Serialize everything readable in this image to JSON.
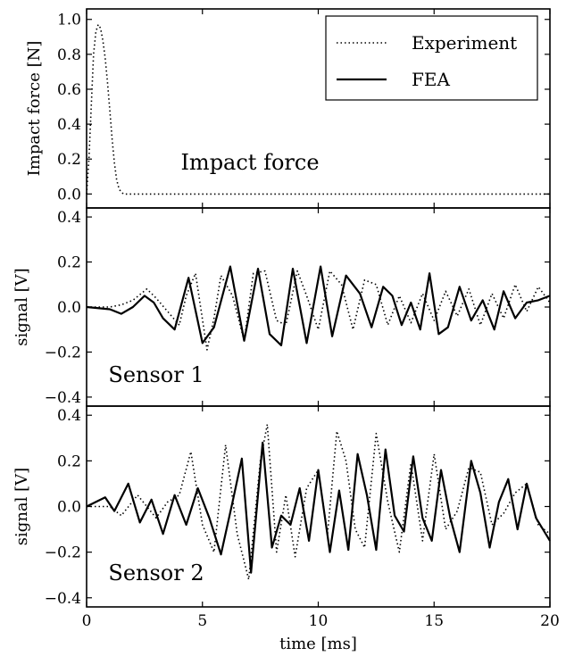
{
  "chart_data": [
    {
      "type": "line",
      "ylabel": "Impact force [N]",
      "annotation": "Impact force",
      "xlim": [
        0,
        20
      ],
      "ylim": [
        -0.08,
        1.06
      ],
      "yticks": [
        0.0,
        0.2,
        0.4,
        0.6,
        0.8,
        1.0
      ],
      "ytick_labels": [
        "0.0",
        "0.2",
        "0.4",
        "0.6",
        "0.8",
        "1.0"
      ],
      "legend": {
        "position": "top-right",
        "entries": [
          {
            "label": "Experiment",
            "style": "dotted"
          },
          {
            "label": "FEA",
            "style": "solid"
          }
        ]
      },
      "series": [
        {
          "name": "Experiment",
          "style": "dotted",
          "x": [
            0,
            0.1,
            0.2,
            0.3,
            0.4,
            0.5,
            0.6,
            0.7,
            0.8,
            0.9,
            1.0,
            1.1,
            1.2,
            1.3,
            1.4,
            1.5,
            1.6,
            1.7,
            1.8,
            2.0,
            3,
            5,
            10,
            15,
            20
          ],
          "y": [
            0.0,
            0.2,
            0.5,
            0.8,
            0.93,
            0.97,
            0.95,
            0.88,
            0.78,
            0.64,
            0.48,
            0.32,
            0.18,
            0.08,
            0.03,
            0.01,
            0.0,
            0.0,
            0.0,
            0.0,
            0.0,
            0.0,
            0.0,
            0.0,
            0.0
          ]
        }
      ]
    },
    {
      "type": "line",
      "ylabel": "signal [V]",
      "annotation": "Sensor 1",
      "xlim": [
        0,
        20
      ],
      "ylim": [
        -0.44,
        0.44
      ],
      "yticks": [
        -0.4,
        -0.2,
        0.0,
        0.2,
        0.4
      ],
      "ytick_labels": [
        "−0.4",
        "−0.2",
        "0.0",
        "0.2",
        "0.4"
      ],
      "series": [
        {
          "name": "Experiment",
          "style": "dotted",
          "x": [
            0,
            1,
            1.5,
            2,
            2.6,
            3.0,
            3.5,
            4.0,
            4.3,
            4.7,
            5.2,
            5.5,
            5.8,
            6.3,
            6.8,
            7.2,
            7.7,
            8.2,
            8.6,
            9.1,
            9.5,
            10.0,
            10.5,
            11.0,
            11.5,
            12.0,
            12.5,
            13.0,
            13.5,
            14.0,
            14.5,
            15.0,
            15.5,
            16.0,
            16.5,
            17.0,
            17.5,
            18.0,
            18.5,
            19.0,
            19.5,
            20
          ],
          "y": [
            0.0,
            0.0,
            0.01,
            0.03,
            0.08,
            0.04,
            -0.02,
            -0.08,
            0.05,
            0.15,
            -0.19,
            -0.05,
            0.14,
            0.05,
            -0.15,
            0.15,
            0.16,
            -0.06,
            -0.08,
            0.16,
            0.05,
            -0.1,
            0.16,
            0.1,
            -0.1,
            0.12,
            0.1,
            -0.08,
            0.05,
            -0.07,
            0.06,
            -0.06,
            0.07,
            -0.04,
            0.08,
            -0.08,
            0.06,
            -0.05,
            0.1,
            -0.02,
            0.09,
            0.02
          ]
        },
        {
          "name": "FEA",
          "style": "solid",
          "x": [
            0,
            1,
            1.5,
            2.0,
            2.5,
            2.9,
            3.3,
            3.8,
            4.4,
            5.0,
            5.5,
            6.2,
            6.8,
            7.4,
            7.9,
            8.4,
            8.9,
            9.5,
            10.1,
            10.6,
            11.2,
            11.8,
            12.3,
            12.8,
            13.2,
            13.6,
            14.0,
            14.4,
            14.8,
            15.2,
            15.6,
            16.1,
            16.6,
            17.1,
            17.6,
            18.0,
            18.5,
            19.0,
            19.5,
            20
          ],
          "y": [
            0.0,
            -0.01,
            -0.03,
            0.0,
            0.05,
            0.02,
            -0.05,
            -0.1,
            0.13,
            -0.16,
            -0.09,
            0.18,
            -0.15,
            0.17,
            -0.12,
            -0.17,
            0.17,
            -0.16,
            0.18,
            -0.13,
            0.14,
            0.06,
            -0.09,
            0.09,
            0.05,
            -0.08,
            0.02,
            -0.1,
            0.15,
            -0.12,
            -0.09,
            0.09,
            -0.06,
            0.03,
            -0.1,
            0.07,
            -0.05,
            0.02,
            0.03,
            0.05
          ]
        }
      ]
    },
    {
      "type": "line",
      "ylabel": "signal [V]",
      "annotation": "Sensor 2",
      "xlabel": "time [ms]",
      "xlim": [
        0,
        20
      ],
      "xticks": [
        0,
        5,
        10,
        15,
        20
      ],
      "xtick_labels": [
        "0",
        "5",
        "10",
        "15",
        "20"
      ],
      "ylim": [
        -0.44,
        0.44
      ],
      "yticks": [
        -0.4,
        -0.2,
        0.0,
        0.2,
        0.4
      ],
      "ytick_labels": [
        "−0.4",
        "−0.2",
        "0.0",
        "0.2",
        "0.4"
      ],
      "series": [
        {
          "name": "Experiment",
          "style": "dotted",
          "x": [
            0,
            1,
            1.5,
            2.2,
            3.0,
            3.5,
            4.0,
            4.5,
            5.0,
            5.5,
            6.0,
            6.5,
            7.0,
            7.5,
            7.8,
            8.2,
            8.6,
            9.0,
            9.5,
            10.0,
            10.4,
            10.8,
            11.2,
            11.6,
            12.0,
            12.5,
            13.0,
            13.5,
            14.0,
            14.5,
            15.0,
            15.5,
            16.0,
            16.5,
            17.0,
            17.5,
            18.0,
            18.5,
            19.0,
            19.5,
            20
          ],
          "y": [
            0.0,
            0.0,
            -0.04,
            0.05,
            -0.05,
            0.02,
            0.05,
            0.24,
            -0.08,
            -0.2,
            0.27,
            -0.12,
            -0.32,
            0.2,
            0.36,
            -0.2,
            0.05,
            -0.22,
            0.08,
            0.16,
            -0.12,
            0.33,
            0.2,
            -0.1,
            -0.18,
            0.32,
            0.02,
            -0.2,
            0.19,
            -0.15,
            0.23,
            -0.1,
            -0.02,
            0.17,
            0.15,
            -0.08,
            -0.03,
            0.06,
            0.1,
            -0.08,
            -0.12
          ]
        },
        {
          "name": "FEA",
          "style": "solid",
          "x": [
            0,
            0.8,
            1.2,
            1.8,
            2.3,
            2.8,
            3.3,
            3.8,
            4.3,
            4.8,
            5.3,
            5.8,
            6.3,
            6.7,
            7.1,
            7.6,
            8.0,
            8.4,
            8.8,
            9.2,
            9.6,
            10.0,
            10.5,
            10.9,
            11.3,
            11.7,
            12.1,
            12.5,
            12.9,
            13.3,
            13.7,
            14.1,
            14.5,
            14.9,
            15.3,
            15.7,
            16.1,
            16.6,
            17.0,
            17.4,
            17.8,
            18.2,
            18.6,
            19.0,
            19.4,
            20
          ],
          "y": [
            0.0,
            0.04,
            -0.02,
            0.1,
            -0.07,
            0.03,
            -0.12,
            0.05,
            -0.08,
            0.08,
            -0.05,
            -0.21,
            0.02,
            0.21,
            -0.29,
            0.28,
            -0.18,
            -0.04,
            -0.08,
            0.08,
            -0.15,
            0.16,
            -0.2,
            0.07,
            -0.19,
            0.23,
            0.05,
            -0.19,
            0.25,
            -0.04,
            -0.11,
            0.22,
            -0.05,
            -0.15,
            0.16,
            -0.05,
            -0.2,
            0.2,
            0.06,
            -0.18,
            0.02,
            0.12,
            -0.1,
            0.1,
            -0.05,
            -0.15
          ]
        }
      ]
    }
  ]
}
